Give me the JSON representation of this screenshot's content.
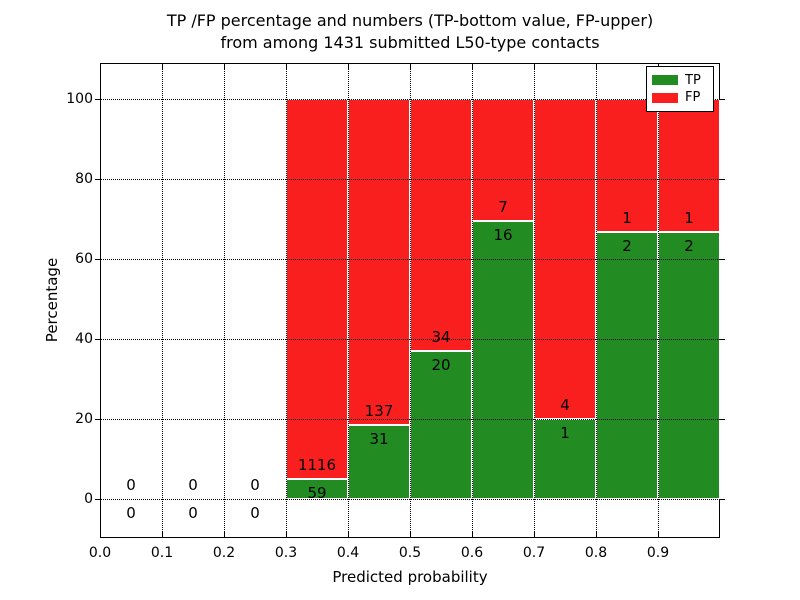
{
  "chart_data": {
    "type": "bar",
    "subtype": "stacked-100-percent",
    "title_lines": [
      "TP /FP percentage and numbers (TP-bottom value, FP-upper)",
      "from among 1431 submitted L50-type contacts"
    ],
    "xlabel": "Predicted probability",
    "ylabel": "Percentage",
    "total_submitted_contacts": 1431,
    "xlim": [
      0.0,
      1.0
    ],
    "ylim": [
      -9.75,
      109.0
    ],
    "xtick_values": [
      0.0,
      0.1,
      0.2,
      0.3,
      0.4,
      0.5,
      0.6,
      0.7,
      0.8,
      0.9
    ],
    "xtick_labels": [
      "0.0",
      "0.1",
      "0.2",
      "0.3",
      "0.4",
      "0.5",
      "0.6",
      "0.7",
      "0.8",
      "0.9"
    ],
    "ytick_values": [
      0,
      20,
      40,
      60,
      80,
      100
    ],
    "ytick_labels": [
      "0",
      "20",
      "40",
      "60",
      "80",
      "100"
    ],
    "grid": "dotted",
    "legend": {
      "position": "upper-right",
      "entries": [
        {
          "label": "TP",
          "color": "#228b22"
        },
        {
          "label": "FP",
          "color": "#fa1f1f"
        }
      ]
    },
    "bins": [
      {
        "x_start": 0.0,
        "x_end": 0.1,
        "tp": 0,
        "fp": 0,
        "tp_pct": null,
        "fp_pct": null
      },
      {
        "x_start": 0.1,
        "x_end": 0.2,
        "tp": 0,
        "fp": 0,
        "tp_pct": null,
        "fp_pct": null
      },
      {
        "x_start": 0.2,
        "x_end": 0.3,
        "tp": 0,
        "fp": 0,
        "tp_pct": null,
        "fp_pct": null
      },
      {
        "x_start": 0.3,
        "x_end": 0.4,
        "tp": 59,
        "fp": 1116,
        "tp_pct": 5.02,
        "fp_pct": 94.98
      },
      {
        "x_start": 0.4,
        "x_end": 0.5,
        "tp": 31,
        "fp": 137,
        "tp_pct": 18.45,
        "fp_pct": 81.55
      },
      {
        "x_start": 0.5,
        "x_end": 0.6,
        "tp": 20,
        "fp": 34,
        "tp_pct": 37.04,
        "fp_pct": 62.96
      },
      {
        "x_start": 0.6,
        "x_end": 0.7,
        "tp": 16,
        "fp": 7,
        "tp_pct": 69.57,
        "fp_pct": 30.43
      },
      {
        "x_start": 0.7,
        "x_end": 0.8,
        "tp": 1,
        "fp": 4,
        "tp_pct": 20.0,
        "fp_pct": 80.0
      },
      {
        "x_start": 0.8,
        "x_end": 0.9,
        "tp": 2,
        "fp": 1,
        "tp_pct": 66.67,
        "fp_pct": 33.33
      },
      {
        "x_start": 0.9,
        "x_end": 1.0,
        "tp": 2,
        "fp": 1,
        "tp_pct": 66.67,
        "fp_pct": 33.33
      }
    ]
  },
  "colors": {
    "tp": "#228b22",
    "fp": "#fa1f1f",
    "background": "#ffffff",
    "axis": "#000000",
    "grid": "#000000"
  }
}
